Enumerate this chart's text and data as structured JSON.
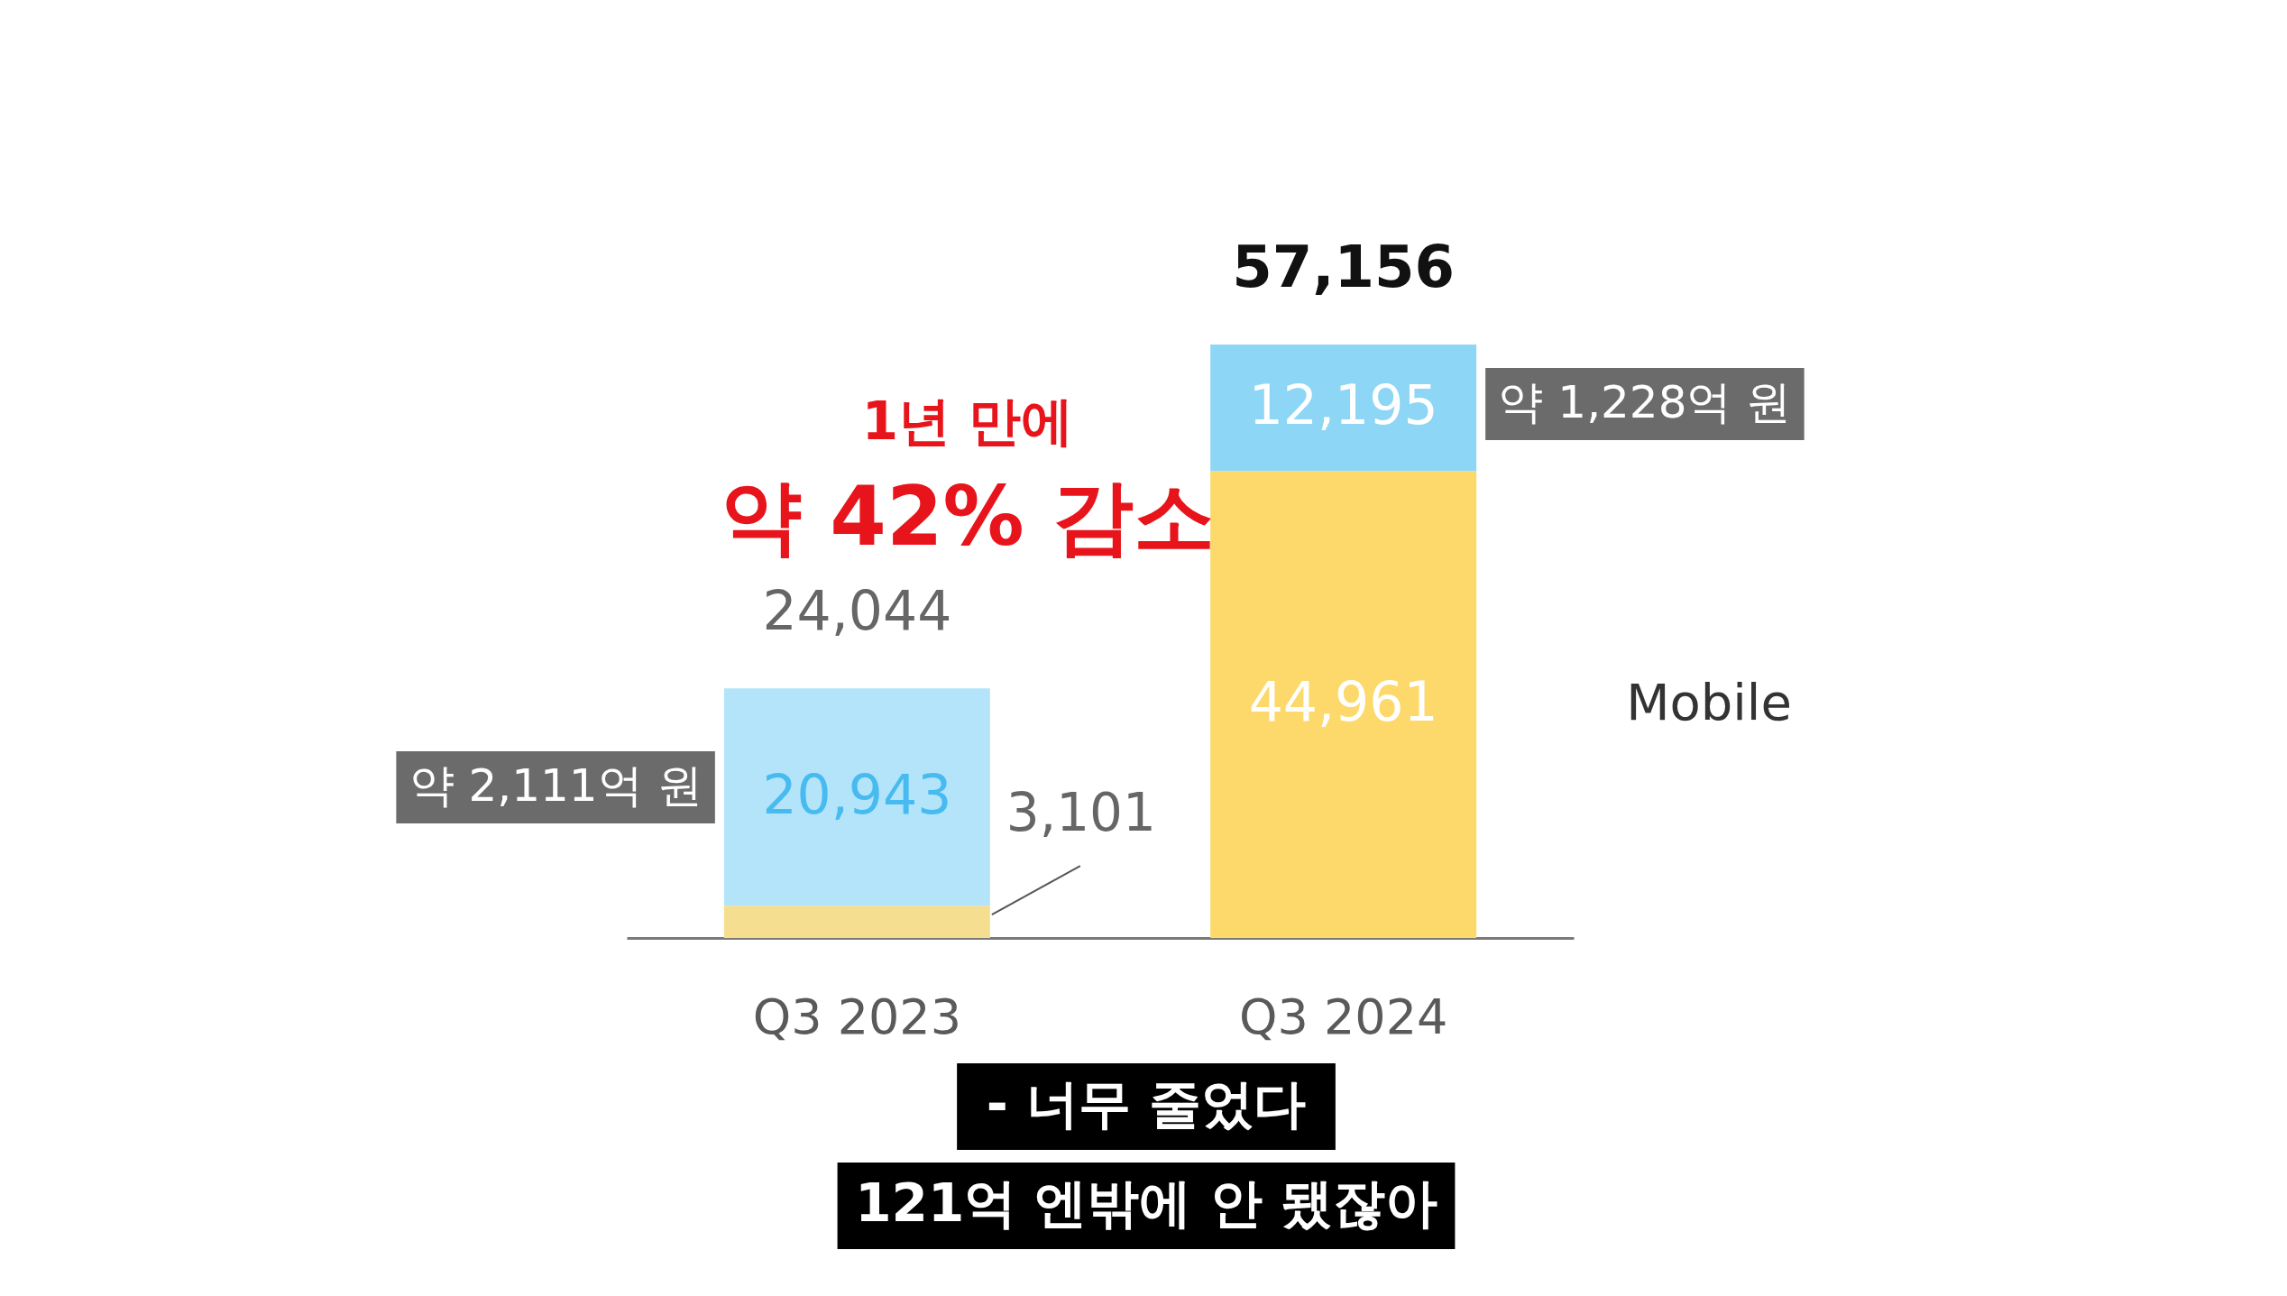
{
  "chart_data": {
    "type": "bar",
    "stacked": true,
    "categories": [
      "Q3 2023",
      "Q3 2024"
    ],
    "series": [
      {
        "name": "Mobile",
        "colors": [
          "#f6de90",
          "#fdd96b"
        ],
        "values": [
          3101,
          44961
        ],
        "value_labels": [
          "3,101",
          "44,961"
        ]
      },
      {
        "colors": [
          "#b3e4fa",
          "#8ed6f6"
        ],
        "values": [
          20943,
          12195
        ],
        "value_labels": [
          "20,943",
          "12,195"
        ]
      }
    ],
    "totals": [
      "24,044",
      "57,156"
    ],
    "annotations": [
      "약 2,111억 원",
      "약 1,228억 원",
      "1년 만에",
      "약 42% 감소",
      "- 너무 줄었다",
      "121억 엔밖에 안 됐잖아"
    ]
  }
}
